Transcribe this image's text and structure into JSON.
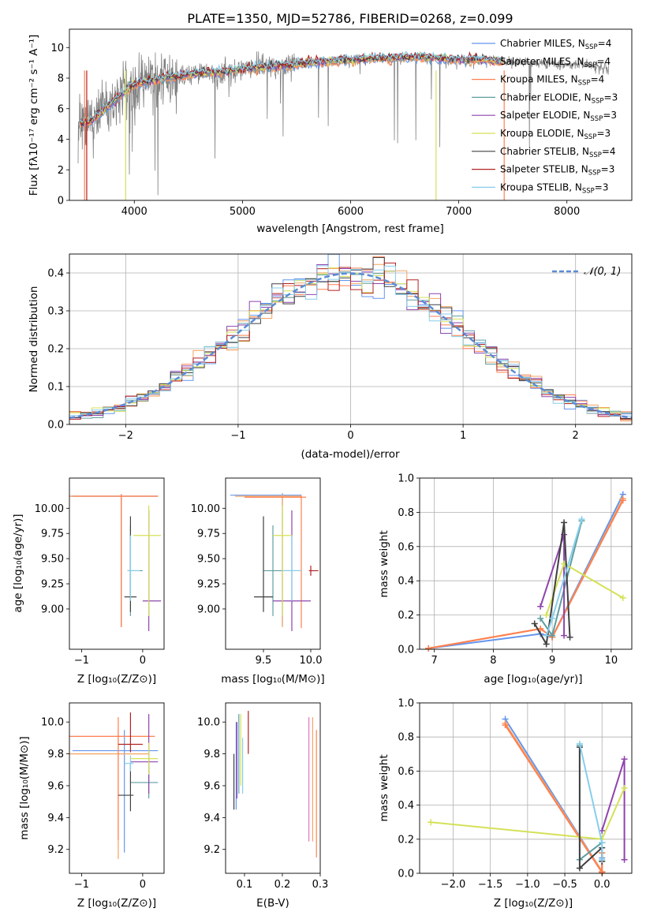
{
  "figure_title": "PLATE=1350, MJD=52786, FIBERID=0268, z=0.099",
  "legend_entries": [
    {
      "model": "Chabrier MILES",
      "nssp": "4",
      "color": "#6495ed"
    },
    {
      "model": "Salpeter MILES",
      "nssp": "4",
      "color": "#f4a460"
    },
    {
      "model": "Kroupa MILES",
      "nssp": "4",
      "color": "#ff7f50"
    },
    {
      "model": "Chabrier ELODIE",
      "nssp": "3",
      "color": "#5f9ea0"
    },
    {
      "model": "Salpeter ELODIE",
      "nssp": "3",
      "color": "#8e44ad"
    },
    {
      "model": "Kroupa ELODIE",
      "nssp": "3",
      "color": "#d4e157"
    },
    {
      "model": "Chabrier STELIB",
      "nssp": "4",
      "color": "#404040"
    },
    {
      "model": "Salpeter STELIB",
      "nssp": "3",
      "color": "#b22222"
    },
    {
      "model": "Kroupa STELIB",
      "nssp": "3",
      "color": "#87ceeb"
    }
  ],
  "nssp_prefix": "N",
  "nssp_sub": "SSP",
  "chart_data": [
    {
      "id": "spectrum",
      "type": "line",
      "xlabel": "wavelength [Angstrom, rest frame]",
      "ylabel": "Flux [fλ10⁻¹⁷ erg cm⁻² s⁻¹ A⁻¹]",
      "xlim": [
        3400,
        8600
      ],
      "ylim": [
        0,
        11.2
      ],
      "xticks": [
        4000,
        5000,
        6000,
        7000,
        8000
      ],
      "yticks": [
        0,
        2,
        4,
        6,
        8,
        10
      ],
      "data_color": "#808080",
      "data_profile": {
        "x": [
          3500,
          3600,
          3700,
          3800,
          3900,
          4000,
          4200,
          4400,
          4600,
          4800,
          5000,
          5200,
          5400,
          5600,
          5800,
          6000,
          6200,
          6400,
          6600,
          6800,
          7000,
          7200,
          7400,
          7600,
          7800,
          8000,
          8200,
          8400
        ],
        "y": [
          5.0,
          5.2,
          5.8,
          6.4,
          7.0,
          7.6,
          7.9,
          8.1,
          8.3,
          8.4,
          8.6,
          8.7,
          8.8,
          9.0,
          9.1,
          9.2,
          9.3,
          9.3,
          9.4,
          9.3,
          9.2,
          9.2,
          9.1,
          9.0,
          9.0,
          8.9,
          8.8,
          8.6
        ]
      }
    },
    {
      "id": "residuals",
      "type": "histogram",
      "xlabel": "(data-model)/error",
      "ylabel": "Normed distribution",
      "xlim": [
        -2.5,
        2.5
      ],
      "ylim": [
        0,
        0.45
      ],
      "xticks": [
        -2,
        -1,
        0,
        1,
        2
      ],
      "yticks": [
        0.0,
        0.1,
        0.2,
        0.3,
        0.4
      ],
      "bin_width": 0.1,
      "reference_curve": "normal",
      "reference_label": "𝒩(0, 1)",
      "reference_color": "#5b8bd6"
    },
    {
      "id": "Z-age",
      "type": "errorbar",
      "xlabel": "Z [log₁₀(Z/Z⊙)]",
      "ylabel": "age  [log₁₀(age/yr)]",
      "xlim": [
        -1.2,
        0.35
      ],
      "ylim": [
        8.6,
        10.3
      ],
      "xticks": [
        -1,
        0
      ],
      "yticks": [
        9.0,
        9.25,
        9.5,
        9.75,
        10.0
      ],
      "points": [
        {
          "x": -0.35,
          "y": 10.12,
          "xerr": [
            0.9,
            0.6
          ],
          "yerr": [
            1.3,
            0.02
          ],
          "color": "#6495ed"
        },
        {
          "x": -0.35,
          "y": 10.12,
          "xerr": [
            0.85,
            0.6
          ],
          "yerr": [
            1.3,
            0.02
          ],
          "color": "#f4a460"
        },
        {
          "x": -0.35,
          "y": 10.12,
          "xerr": [
            0.8,
            0.6
          ],
          "yerr": [
            1.3,
            0.02
          ],
          "color": "#ff7f50"
        },
        {
          "x": -0.2,
          "y": 9.38,
          "xerr": [
            0.05,
            0.2
          ],
          "yerr": [
            0.45,
            0.45
          ],
          "color": "#5f9ea0"
        },
        {
          "x": 0.1,
          "y": 9.08,
          "xerr": [
            0.1,
            0.2
          ],
          "yerr": [
            0.3,
            0.9
          ],
          "color": "#8e44ad"
        },
        {
          "x": 0.1,
          "y": 9.73,
          "xerr": [
            0.25,
            0.2
          ],
          "yerr": [
            0.8,
            0.3
          ],
          "color": "#d4e157"
        },
        {
          "x": -0.2,
          "y": 9.12,
          "xerr": [
            0.1,
            0.1
          ],
          "yerr": [
            0.15,
            0.8
          ],
          "color": "#404040"
        },
        {
          "x": -0.2,
          "y": 9.38,
          "xerr": [
            0.05,
            0.15
          ],
          "yerr": [
            0.3,
            0.35
          ],
          "color": "#87ceeb"
        }
      ]
    },
    {
      "id": "mass-age",
      "type": "errorbar",
      "xlabel": "mass [log₁₀(M/M⊙)]",
      "ylabel": "",
      "xlim": [
        9.1,
        10.1
      ],
      "ylim": [
        8.6,
        10.3
      ],
      "xticks": [
        9.5,
        10.0
      ],
      "yticks": [
        9.0,
        9.25,
        9.5,
        9.75,
        10.0
      ],
      "points": [
        {
          "x": 9.7,
          "y": 10.13,
          "xerr": [
            0.55,
            0.2
          ],
          "yerr": [
            1.3,
            0.02
          ],
          "color": "#6495ed"
        },
        {
          "x": 9.7,
          "y": 10.12,
          "xerr": [
            0.5,
            0.2
          ],
          "yerr": [
            1.3,
            0.02
          ],
          "color": "#f4a460"
        },
        {
          "x": 9.9,
          "y": 10.11,
          "xerr": [
            0.6,
            0.05
          ],
          "yerr": [
            1.3,
            0.02
          ],
          "color": "#ff7f50"
        },
        {
          "x": 9.6,
          "y": 9.38,
          "xerr": [
            0.1,
            0.3
          ],
          "yerr": [
            0.45,
            0.45
          ],
          "color": "#5f9ea0"
        },
        {
          "x": 9.8,
          "y": 9.08,
          "xerr": [
            0.2,
            0.2
          ],
          "yerr": [
            0.3,
            0.9
          ],
          "color": "#8e44ad"
        },
        {
          "x": 9.7,
          "y": 9.73,
          "xerr": [
            0.1,
            0.1
          ],
          "yerr": [
            0.8,
            0.3
          ],
          "color": "#d4e157"
        },
        {
          "x": 9.5,
          "y": 9.12,
          "xerr": [
            0.1,
            0.1
          ],
          "yerr": [
            0.15,
            0.8
          ],
          "color": "#404040"
        },
        {
          "x": 10.0,
          "y": 9.38,
          "xerr": [
            0.02,
            0.08
          ],
          "yerr": [
            0.05,
            0.05
          ],
          "color": "#b22222"
        },
        {
          "x": 9.8,
          "y": 9.38,
          "xerr": [
            0.1,
            0.1
          ],
          "yerr": [
            0.3,
            0.35
          ],
          "color": "#87ceeb"
        }
      ]
    },
    {
      "id": "age-weight",
      "type": "line",
      "xlabel": "age  [log₁₀(age/yr)]",
      "ylabel": "mass weight",
      "xlim": [
        6.75,
        10.35
      ],
      "ylim": [
        0,
        1.0
      ],
      "xticks": [
        7,
        8,
        9,
        10
      ],
      "yticks": [
        0.0,
        0.2,
        0.4,
        0.6,
        0.8,
        1.0
      ],
      "series": [
        {
          "color": "#6495ed",
          "x": [
            6.9,
            8.8,
            9.0,
            10.2
          ],
          "y": [
            0.005,
            0.09,
            0.07,
            0.905
          ]
        },
        {
          "color": "#f4a460",
          "x": [
            6.9,
            8.8,
            9.0,
            10.2
          ],
          "y": [
            0.005,
            0.12,
            0.07,
            0.88
          ]
        },
        {
          "color": "#ff7f50",
          "x": [
            6.9,
            8.8,
            9.0,
            10.2
          ],
          "y": [
            0.005,
            0.12,
            0.07,
            0.87
          ]
        },
        {
          "color": "#5f9ea0",
          "x": [
            8.8,
            9.0,
            9.5
          ],
          "y": [
            0.18,
            0.08,
            0.75
          ]
        },
        {
          "color": "#8e44ad",
          "x": [
            8.8,
            9.2,
            9.2
          ],
          "y": [
            0.25,
            0.67,
            0.08
          ]
        },
        {
          "color": "#d4e157",
          "x": [
            8.9,
            9.2,
            10.2
          ],
          "y": [
            0.2,
            0.5,
            0.3
          ]
        },
        {
          "color": "#404040",
          "x": [
            8.7,
            8.9,
            9.2,
            9.3
          ],
          "y": [
            0.15,
            0.03,
            0.74,
            0.07
          ]
        },
        {
          "color": "#87ceeb",
          "x": [
            8.9,
            9.0,
            9.5
          ],
          "y": [
            0.08,
            0.18,
            0.76
          ]
        }
      ]
    },
    {
      "id": "Z-mass",
      "type": "errorbar",
      "xlabel": "Z [log₁₀(Z/Z⊙)]",
      "ylabel": "mass [log₁₀(M/M⊙)]",
      "xlim": [
        -1.2,
        0.35
      ],
      "ylim": [
        9.05,
        10.12
      ],
      "xticks": [
        -1,
        0
      ],
      "yticks": [
        9.2,
        9.4,
        9.6,
        9.8,
        10.0
      ],
      "points": [
        {
          "x": -0.3,
          "y": 9.82,
          "xerr": [
            0.85,
            0.55
          ],
          "yerr": [
            0.64,
            0.13
          ],
          "color": "#6495ed"
        },
        {
          "x": -0.4,
          "y": 9.8,
          "xerr": [
            0.8,
            0.5
          ],
          "yerr": [
            0.66,
            0.15
          ],
          "color": "#f4a460"
        },
        {
          "x": -0.4,
          "y": 9.91,
          "xerr": [
            0.8,
            0.6
          ],
          "yerr": [
            0.65,
            0.12
          ],
          "color": "#ff7f50"
        },
        {
          "x": 0.1,
          "y": 9.62,
          "xerr": [
            0.3,
            0.15
          ],
          "yerr": [
            0.1,
            0.1
          ],
          "color": "#5f9ea0"
        },
        {
          "x": 0.1,
          "y": 9.75,
          "xerr": [
            0.3,
            0.15
          ],
          "yerr": [
            0.2,
            0.3
          ],
          "color": "#8e44ad"
        },
        {
          "x": 0.1,
          "y": 9.77,
          "xerr": [
            0.3,
            0.15
          ],
          "yerr": [
            0.1,
            0.1
          ],
          "color": "#d4e157"
        },
        {
          "x": -0.2,
          "y": 9.54,
          "xerr": [
            0.2,
            0.05
          ],
          "yerr": [
            0.1,
            0.2
          ],
          "color": "#404040"
        },
        {
          "x": -0.2,
          "y": 9.86,
          "xerr": [
            0.2,
            0.2
          ],
          "yerr": [
            0.05,
            0.2
          ],
          "color": "#b22222"
        },
        {
          "x": -0.2,
          "y": 9.74,
          "xerr": [
            0.1,
            0.05
          ],
          "yerr": [
            0.05,
            0.05
          ],
          "color": "#87ceeb"
        }
      ]
    },
    {
      "id": "ebv-mass",
      "type": "errorbar",
      "xlabel": "E(B-V)",
      "ylabel": "",
      "xlim": [
        0.05,
        0.3
      ],
      "ylim": [
        9.05,
        10.12
      ],
      "xticks": [
        0.1,
        0.2,
        0.3
      ],
      "yticks": [
        9.2,
        9.4,
        9.6,
        9.8,
        10.0
      ],
      "points": [
        {
          "x": 0.078,
          "y": 9.7,
          "xerr": [
            0,
            0
          ],
          "yerr": [
            0.25,
            0.3
          ],
          "color": "#6495ed"
        },
        {
          "x": 0.085,
          "y": 9.8,
          "xerr": [
            0,
            0
          ],
          "yerr": [
            0.25,
            0.25
          ],
          "color": "#5f9ea0"
        },
        {
          "x": 0.09,
          "y": 9.8,
          "xerr": [
            0,
            0
          ],
          "yerr": [
            0.2,
            0.25
          ],
          "color": "#d4e157"
        },
        {
          "x": 0.072,
          "y": 9.6,
          "xerr": [
            0,
            0
          ],
          "yerr": [
            0.15,
            0.2
          ],
          "color": "#404040"
        },
        {
          "x": 0.11,
          "y": 9.95,
          "xerr": [
            0,
            0
          ],
          "yerr": [
            0.15,
            0.12
          ],
          "color": "#b22222"
        },
        {
          "x": 0.095,
          "y": 9.7,
          "xerr": [
            0,
            0
          ],
          "yerr": [
            0.15,
            0.2
          ],
          "color": "#87ceeb"
        },
        {
          "x": 0.08,
          "y": 9.6,
          "xerr": [
            0,
            0
          ],
          "yerr": [
            0.08,
            0.4
          ],
          "color": "#8e44ad"
        },
        {
          "x": 0.29,
          "y": 9.55,
          "xerr": [
            0,
            0
          ],
          "yerr": [
            0.4,
            0.4
          ],
          "color": "#ff7f50"
        },
        {
          "x": 0.28,
          "y": 9.6,
          "xerr": [
            0,
            0
          ],
          "yerr": [
            0.35,
            0.43
          ],
          "color": "#f4a460"
        },
        {
          "x": 0.27,
          "y": 9.6,
          "xerr": [
            0,
            0
          ],
          "yerr": [
            0.35,
            0.43
          ],
          "color": "#e377c2"
        }
      ]
    },
    {
      "id": "Z-weight",
      "type": "line",
      "xlabel": "Z [log₁₀(Z/Z⊙)]",
      "ylabel": "mass weight",
      "xlim": [
        -2.45,
        0.4
      ],
      "ylim": [
        0,
        1.0
      ],
      "xticks": [
        -2.0,
        -1.5,
        -1.0,
        -0.5,
        0.0
      ],
      "yticks": [
        0.0,
        0.2,
        0.4,
        0.6,
        0.8,
        1.0
      ],
      "series": [
        {
          "color": "#6495ed",
          "x": [
            -1.3,
            0.0,
            0.0
          ],
          "y": [
            0.905,
            0.01,
            0.09
          ]
        },
        {
          "color": "#f4a460",
          "x": [
            -1.3,
            0.0,
            0.0
          ],
          "y": [
            0.88,
            0.01,
            0.12
          ]
        },
        {
          "color": "#ff7f50",
          "x": [
            -1.3,
            0.0,
            0.0
          ],
          "y": [
            0.87,
            0.005,
            0.12
          ]
        },
        {
          "color": "#5f9ea0",
          "x": [
            -0.3,
            -0.3,
            0.0
          ],
          "y": [
            0.75,
            0.08,
            0.18
          ]
        },
        {
          "color": "#8e44ad",
          "x": [
            0.0,
            0.3,
            0.3
          ],
          "y": [
            0.25,
            0.67,
            0.08
          ]
        },
        {
          "color": "#d4e157",
          "x": [
            -2.3,
            0.0,
            0.3
          ],
          "y": [
            0.3,
            0.2,
            0.5
          ]
        },
        {
          "color": "#404040",
          "x": [
            -0.3,
            -0.3,
            0.0,
            0.0
          ],
          "y": [
            0.74,
            0.03,
            0.15,
            0.07
          ]
        },
        {
          "color": "#87ceeb",
          "x": [
            -0.3,
            0.0,
            0.0
          ],
          "y": [
            0.76,
            0.18,
            0.08
          ]
        }
      ]
    }
  ]
}
